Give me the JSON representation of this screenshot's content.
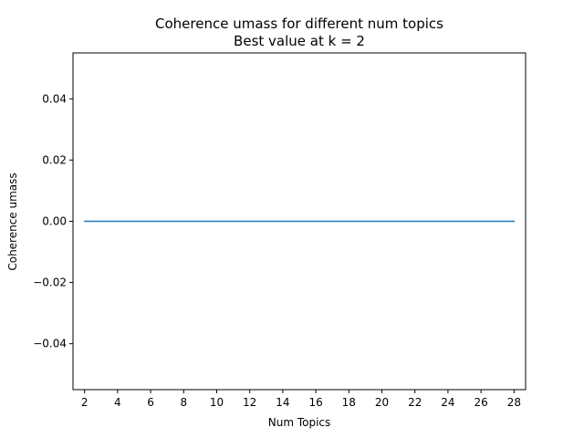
{
  "chart_data": {
    "type": "line",
    "title": "Coherence umass for different num topics",
    "subtitle": "Best value at k = 2",
    "xlabel": "Num Topics",
    "ylabel": "Coherence umass",
    "xlim": [
      1.3,
      28.7
    ],
    "ylim": [
      -0.055,
      0.055
    ],
    "x_ticks": [
      2,
      4,
      6,
      8,
      10,
      12,
      14,
      16,
      18,
      20,
      22,
      24,
      26,
      28
    ],
    "y_ticks": [
      -0.04,
      -0.02,
      0.0,
      0.02,
      0.04
    ],
    "y_tick_labels": [
      "−0.04",
      "−0.02",
      "0.00",
      "0.02",
      "0.04"
    ],
    "grid": false,
    "series": [
      {
        "color": "#1f77b4",
        "x": [
          2,
          4,
          6,
          8,
          10,
          12,
          14,
          16,
          18,
          20,
          22,
          24,
          26,
          28
        ],
        "y": [
          0,
          0,
          0,
          0,
          0,
          0,
          0,
          0,
          0,
          0,
          0,
          0,
          0,
          0
        ]
      }
    ]
  }
}
